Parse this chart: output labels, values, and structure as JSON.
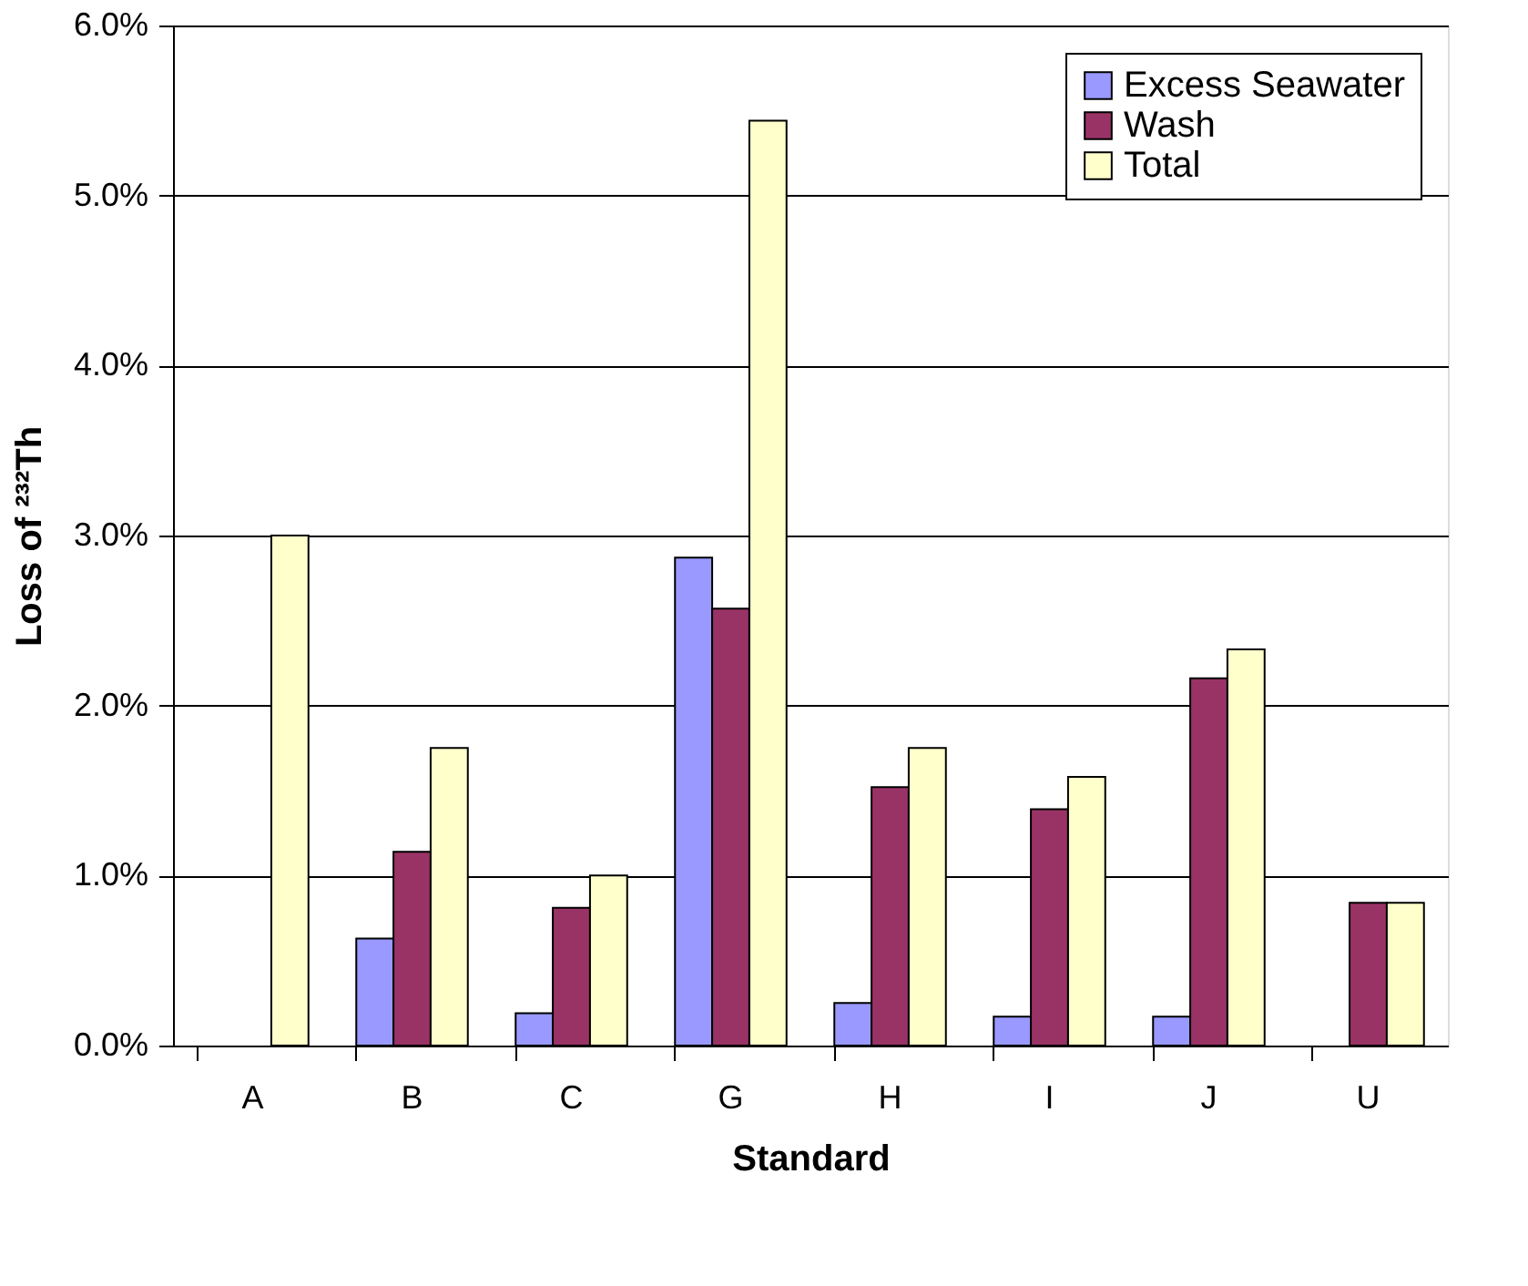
{
  "chart_data": {
    "type": "bar",
    "xlabel": "Standard",
    "ylabel": "Loss of ²³²Th",
    "categories": [
      "A",
      "B",
      "C",
      "G",
      "H",
      "I",
      "J",
      "U"
    ],
    "series": [
      {
        "name": "Excess Seawater",
        "color": "#9999ff",
        "values": [
          null,
          0.63,
          0.19,
          2.87,
          0.25,
          0.17,
          0.17,
          null
        ]
      },
      {
        "name": "Wash",
        "color": "#993366",
        "values": [
          null,
          1.14,
          0.81,
          2.57,
          1.52,
          1.39,
          2.16,
          0.84
        ]
      },
      {
        "name": "Total",
        "color": "#ffffcc",
        "values": [
          3.0,
          1.75,
          1.0,
          5.44,
          1.75,
          1.58,
          2.33,
          0.84
        ]
      }
    ],
    "ylim": [
      0,
      6
    ],
    "yticks": [
      {
        "value": 0,
        "label": "0.0%"
      },
      {
        "value": 1,
        "label": "1.0%"
      },
      {
        "value": 2,
        "label": "2.0%"
      },
      {
        "value": 3,
        "label": "3.0%"
      },
      {
        "value": 4,
        "label": "4.0%"
      },
      {
        "value": 5,
        "label": "5.0%"
      },
      {
        "value": 6,
        "label": "6.0%"
      }
    ],
    "grid": "y",
    "legend": "top right"
  }
}
